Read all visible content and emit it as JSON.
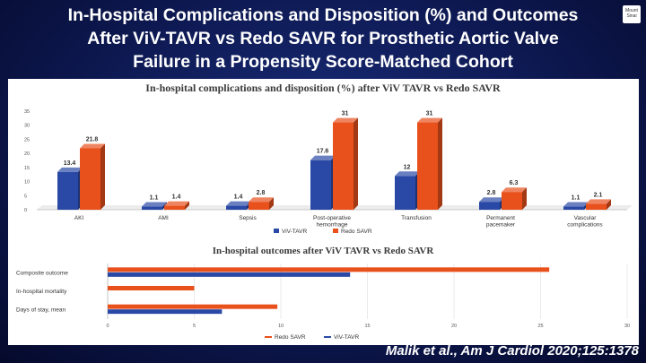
{
  "slide": {
    "title_lines": [
      "In-Hospital Complications and Disposition (%) and Outcomes",
      "After ViV-TAVR vs Redo SAVR for Prosthetic Aortic Valve",
      "Failure in a Propensity Score-Matched Cohort"
    ],
    "citation": "Malik et al., Am J Cardiol 2020;125:1378",
    "logo_text": "Mount Sinai"
  },
  "colors": {
    "viv_tavr": "#2a49a6",
    "redo_savr": "#e8501c",
    "background": "#0d1850"
  },
  "chart_data": [
    {
      "type": "bar",
      "title": "In-hospital complications and disposition (%) after ViV TAVR vs Redo SAVR",
      "categories": [
        "AKI",
        "AMI",
        "Sepsis",
        "Post-operative hemorrhage",
        "Transfusion",
        "Permanent pacemaker",
        "Vascular complications"
      ],
      "category_lines": [
        [
          "AKI"
        ],
        [
          "AMI"
        ],
        [
          "Sepsis"
        ],
        [
          "Post-operative",
          "hemorrhage"
        ],
        [
          "Transfusion"
        ],
        [
          "Permanent",
          "pacemaker"
        ],
        [
          "Vascular",
          "complications"
        ]
      ],
      "series": [
        {
          "name": "ViV-TAVR",
          "values": [
            13.4,
            1.1,
            1.4,
            17.6,
            12,
            2.8,
            1.1
          ],
          "labels": [
            "13.4",
            "1.1",
            "1.4",
            "17.6",
            "12",
            "2.8",
            "1.1"
          ]
        },
        {
          "name": "Redo SAVR",
          "values": [
            21.8,
            1.4,
            2.8,
            31,
            31,
            6.3,
            2.1
          ],
          "labels": [
            "21.8",
            "1.4",
            "2.8",
            "31",
            "31",
            "6.3",
            "2.1"
          ]
        }
      ],
      "ylim": [
        0,
        35
      ],
      "yticks": [
        "0",
        "5",
        "10",
        "15",
        "20",
        "25",
        "30",
        "35"
      ],
      "grid": false,
      "legend": "bottom"
    },
    {
      "type": "bar",
      "orientation": "horizontal",
      "title": "In-hospital outcomes after ViV TAVR vs Redo SAVR",
      "categories": [
        "Composite outcome",
        "In-hospital mortality",
        "Days of stay, mean"
      ],
      "series": [
        {
          "name": "Redo SAVR",
          "values": [
            25.5,
            5.0,
            9.8
          ]
        },
        {
          "name": "ViV-TAVR",
          "values": [
            14.0,
            0,
            6.6
          ]
        }
      ],
      "xlim": [
        0,
        30
      ],
      "xticks": [
        "0",
        "5",
        "10",
        "15",
        "20",
        "25",
        "30"
      ],
      "grid": true,
      "legend": "bottom"
    }
  ]
}
